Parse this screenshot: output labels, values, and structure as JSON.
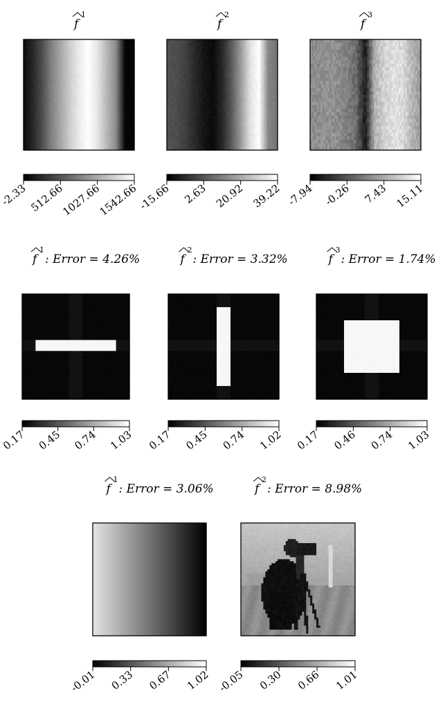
{
  "chart_data": [
    {
      "type": "heatmap",
      "panel": "row1-col1",
      "pattern": "vbands",
      "title": {
        "symbol": "f",
        "sup": "1",
        "text": ""
      },
      "colormap": "gray",
      "clim": [
        -2.33,
        1542.66
      ],
      "colorbar_ticks": [
        "-2.33",
        "512.66",
        "1027.66",
        "1542.66"
      ],
      "profile": [
        0.05,
        0.15,
        0.3,
        0.5,
        0.65,
        0.8,
        0.92,
        1.0,
        0.9,
        0.72,
        0.55,
        0.02,
        0.02
      ],
      "noise": 0.02
    },
    {
      "type": "heatmap",
      "panel": "row1-col2",
      "pattern": "vbands",
      "title": {
        "symbol": "f",
        "sup": "2",
        "text": ""
      },
      "colormap": "gray",
      "clim": [
        -15.66,
        39.22
      ],
      "colorbar_ticks": [
        "-15.66",
        "2.63",
        "20.92",
        "39.22"
      ],
      "profile": [
        0.32,
        0.3,
        0.25,
        0.16,
        0.08,
        0.04,
        0.15,
        0.35,
        0.6,
        0.88,
        1.0,
        0.52,
        0.45
      ],
      "noise": 0.03
    },
    {
      "type": "heatmap",
      "panel": "row1-col3",
      "pattern": "vbands",
      "title": {
        "symbol": "f",
        "sup": "3",
        "text": ""
      },
      "colormap": "gray",
      "clim": [
        -7.94,
        15.11
      ],
      "colorbar_ticks": [
        "-7.94",
        "-0.26",
        "7.43",
        "15.11"
      ],
      "profile": [
        0.55,
        0.56,
        0.57,
        0.55,
        0.5,
        0.42,
        0.1,
        0.7,
        0.82,
        0.88,
        0.86,
        0.72,
        0.6
      ],
      "noise": 0.12
    },
    {
      "type": "heatmap",
      "panel": "row2-col1",
      "pattern": "rect",
      "title": {
        "symbol": "f",
        "sup": "1",
        "text": ": Error = 4.26%"
      },
      "colormap": "gray",
      "clim": [
        0.17,
        1.03
      ],
      "colorbar_ticks": [
        "0.17",
        "0.45",
        "0.74",
        "1.03"
      ],
      "shape": {
        "x0": 0.12,
        "x1": 0.88,
        "y0": 0.43,
        "y1": 0.55
      },
      "noise": 0.01
    },
    {
      "type": "heatmap",
      "panel": "row2-col2",
      "pattern": "rect",
      "title": {
        "symbol": "f",
        "sup": "2",
        "text": ": Error = 3.32%"
      },
      "colormap": "gray",
      "clim": [
        0.17,
        1.02
      ],
      "colorbar_ticks": [
        "0.17",
        "0.45",
        "0.74",
        "1.02"
      ],
      "shape": {
        "x0": 0.44,
        "x1": 0.56,
        "y0": 0.12,
        "y1": 0.88
      },
      "noise": 0.01
    },
    {
      "type": "heatmap",
      "panel": "row2-col3",
      "pattern": "rect",
      "title": {
        "symbol": "f",
        "sup": "3",
        "text": ": Error = 1.74%"
      },
      "colormap": "gray",
      "clim": [
        0.17,
        1.03
      ],
      "colorbar_ticks": [
        "0.17",
        "0.46",
        "0.74",
        "1.03"
      ],
      "shape": {
        "x0": 0.25,
        "x1": 0.75,
        "y0": 0.25,
        "y1": 0.75
      },
      "noise": 0.01
    },
    {
      "type": "heatmap",
      "panel": "row3-col1",
      "pattern": "hgrad",
      "title": {
        "symbol": "f",
        "sup": "1",
        "text": ": Error = 3.06%"
      },
      "colormap": "gray",
      "clim": [
        -0.01,
        1.02
      ],
      "colorbar_ticks": [
        "-0.01",
        "0.33",
        "0.67",
        "1.02"
      ],
      "noise": 0.0
    },
    {
      "type": "heatmap",
      "panel": "row3-col2",
      "pattern": "photo",
      "title": {
        "symbol": "f",
        "sup": "2",
        "text": ": Error = 8.98%"
      },
      "colormap": "gray",
      "clim": [
        -0.05,
        1.01
      ],
      "colorbar_ticks": [
        "-0.05",
        "0.30",
        "0.66",
        "1.01"
      ],
      "noise": 0.04
    }
  ]
}
